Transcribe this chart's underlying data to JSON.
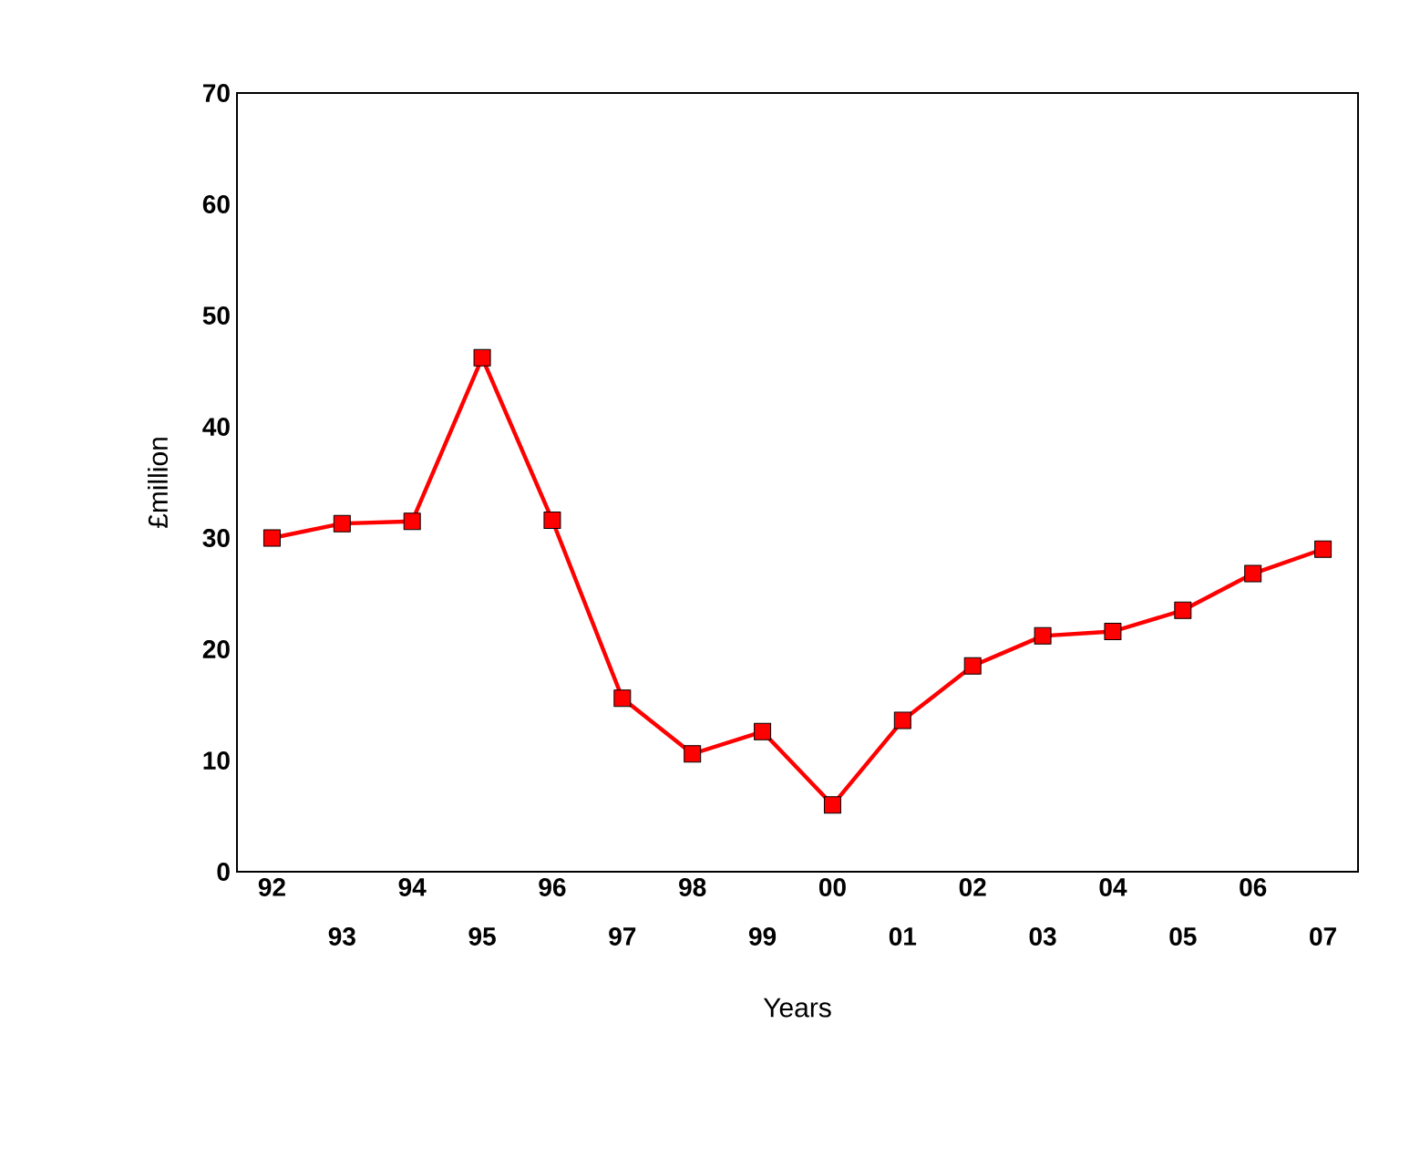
{
  "chart_data": {
    "type": "line",
    "xlabel": "Years",
    "ylabel": "£million",
    "categories": [
      "92",
      "93",
      "94",
      "95",
      "96",
      "97",
      "98",
      "99",
      "00",
      "01",
      "02",
      "03",
      "04",
      "05",
      "06",
      "07"
    ],
    "series": [
      {
        "color": "#ff0000",
        "values": [
          30.0,
          31.3,
          31.5,
          46.2,
          31.6,
          15.6,
          10.6,
          12.6,
          6.0,
          13.6,
          18.5,
          21.2,
          21.6,
          23.5,
          26.8,
          29.0
        ]
      }
    ],
    "ylim": [
      0,
      70
    ],
    "yticks": [
      0,
      10,
      20,
      30,
      40,
      50,
      60,
      70
    ],
    "grid": false,
    "marker": "square",
    "line_style": "solid"
  }
}
